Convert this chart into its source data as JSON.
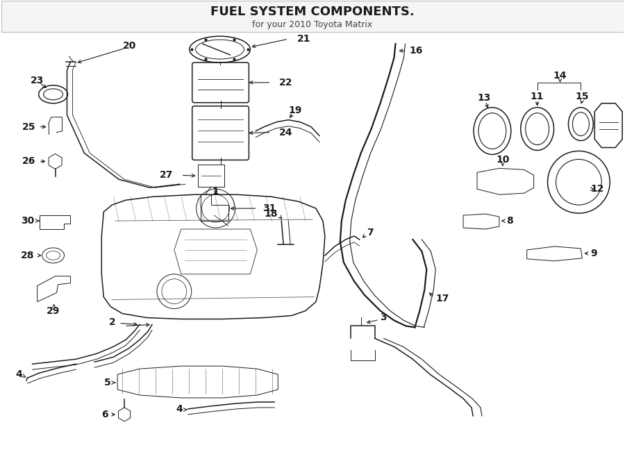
{
  "title": "FUEL SYSTEM COMPONENTS.",
  "subtitle": "for your 2010 Toyota Matrix",
  "bg_color": "#ffffff",
  "line_color": "#1a1a1a",
  "title_fontsize": 13,
  "subtitle_fontsize": 9,
  "fig_width": 9.0,
  "fig_height": 6.61,
  "dpi": 100,
  "lw_thin": 0.7,
  "lw_med": 1.1,
  "lw_thick": 1.6,
  "label_fs": 10
}
